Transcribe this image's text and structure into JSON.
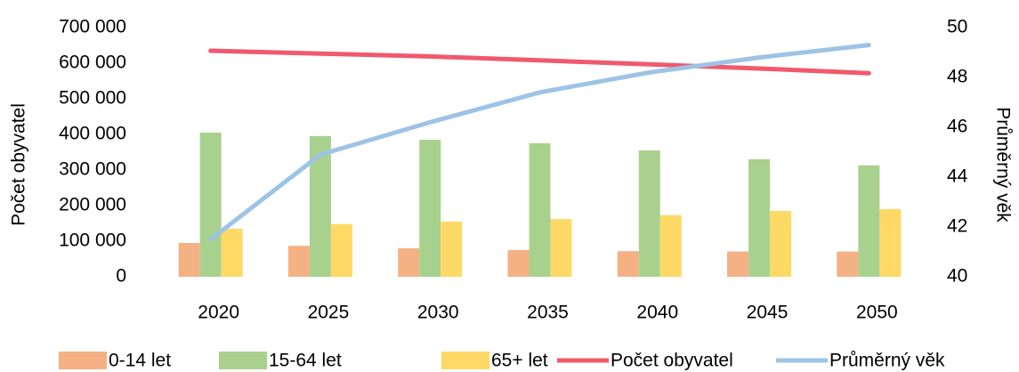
{
  "chart_data": {
    "type": "bar",
    "y_label": "Počet obyvatel",
    "y2_label": "Průměrný věk",
    "categories": [
      "2020",
      "2025",
      "2030",
      "2035",
      "2040",
      "2045",
      "2050"
    ],
    "series": [
      {
        "name": "0-14 let",
        "color": "#f4b183",
        "values": [
          95000,
          87000,
          80000,
          75000,
          72000,
          71000,
          71000
        ]
      },
      {
        "name": "15-64 let",
        "color": "#a9d18e",
        "values": [
          405000,
          395000,
          385000,
          375000,
          355000,
          330000,
          313000
        ]
      },
      {
        "name": "65+ let",
        "color": "#ffd966",
        "values": [
          135000,
          148000,
          155000,
          162000,
          173000,
          185000,
          190000
        ]
      },
      {
        "name": "Počet obyvatel",
        "color": "#f0596e",
        "type": "line",
        "values": [
          635000,
          627000,
          619000,
          608000,
          597000,
          585000,
          572000
        ]
      },
      {
        "name": "Průměrný věk",
        "color": "#9dc3e6",
        "type": "line",
        "axis": "y2",
        "values": [
          41.5,
          44.9,
          46.2,
          47.4,
          48.2,
          48.8,
          49.3
        ]
      }
    ],
    "ylim": [
      0,
      700000
    ],
    "yticks": [
      0,
      {
        "value": 100000,
        "label": "100 000"
      },
      {
        "value": 200000,
        "label": "200 000"
      },
      {
        "value": 300000,
        "label": "300 000"
      },
      {
        "value": 400000,
        "label": "400 000"
      },
      {
        "value": 500000,
        "label": "500 000"
      },
      {
        "value": 600000,
        "label": "600 000"
      },
      {
        "value": 700000,
        "label": "700 000"
      }
    ],
    "y2lim": [
      40,
      50
    ],
    "y2ticks": [
      40,
      42,
      44,
      46,
      48,
      50
    ],
    "legend": "bottom"
  }
}
